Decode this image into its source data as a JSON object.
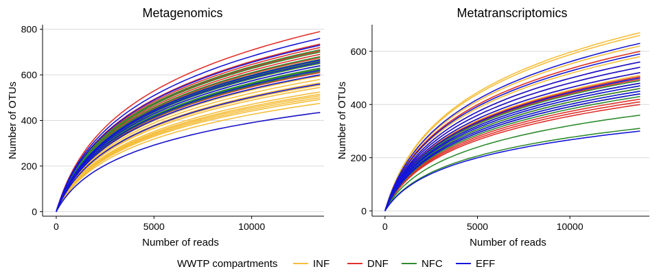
{
  "chart_data": [
    {
      "type": "line",
      "title": "Metagenomics",
      "xlabel": "Number of reads",
      "ylabel": "Number of OTUs",
      "xlim": [
        -700,
        13700
      ],
      "ylim": [
        -20,
        820
      ],
      "x_ticks": [
        0,
        5000,
        10000
      ],
      "y_ticks": [
        0,
        200,
        400,
        600,
        800
      ],
      "grid": "horizontal major",
      "curve_x_max": 13500,
      "series": [
        {
          "group": "INF",
          "final_values": [
            435,
            475,
            492,
            500,
            508,
            515,
            525,
            545,
            555,
            565,
            580,
            595
          ]
        },
        {
          "group": "DNF",
          "final_values": [
            610,
            625,
            640,
            650,
            660,
            675,
            690,
            705,
            720,
            735,
            790
          ]
        },
        {
          "group": "NFC",
          "final_values": [
            600,
            615,
            625,
            630,
            640,
            650,
            660,
            668,
            680,
            700,
            710
          ]
        },
        {
          "group": "EFF",
          "final_values": [
            435,
            560,
            600,
            620,
            640,
            655,
            665,
            730,
            760
          ]
        }
      ]
    },
    {
      "type": "line",
      "title": "Metatranscriptomics",
      "xlabel": "Number of reads",
      "ylabel": "Number of OTUs",
      "xlim": [
        -700,
        14300
      ],
      "ylim": [
        -20,
        700
      ],
      "x_ticks": [
        0,
        5000,
        10000
      ],
      "y_ticks": [
        0,
        200,
        400,
        600
      ],
      "grid": "horizontal major",
      "curve_x_max": 13800,
      "series": [
        {
          "group": "INF",
          "final_values": [
            440,
            460,
            480,
            500,
            510,
            520,
            540,
            560,
            580,
            600,
            620,
            660,
            670
          ]
        },
        {
          "group": "DNF",
          "final_values": [
            400,
            410,
            420,
            440,
            460,
            480,
            495,
            505,
            520,
            540,
            560,
            600
          ]
        },
        {
          "group": "NFC",
          "final_values": [
            310,
            360,
            430,
            440,
            450,
            460,
            470,
            480,
            490,
            500
          ]
        },
        {
          "group": "EFF",
          "final_values": [
            300,
            440,
            450,
            470,
            480,
            500,
            520,
            540,
            560,
            590,
            630
          ]
        }
      ]
    }
  ],
  "legend": {
    "title": "WWTP compartments",
    "items": [
      {
        "label": "INF",
        "color": "#F5BE3A"
      },
      {
        "label": "DNF",
        "color": "#E0312B"
      },
      {
        "label": "NFC",
        "color": "#2E8B2E"
      },
      {
        "label": "EFF",
        "color": "#1515D8"
      }
    ]
  }
}
